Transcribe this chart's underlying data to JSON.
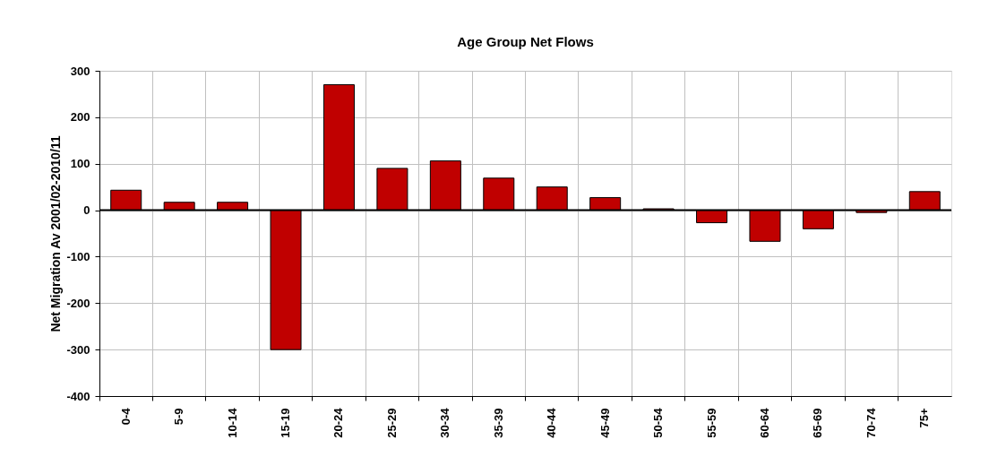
{
  "chart_data": {
    "type": "bar",
    "title": "Age Group Net Flows",
    "ylabel": "Net Migration Av 2001/02-2010/11",
    "categories": [
      "0-4",
      "5-9",
      "10-14",
      "15-19",
      "20-24",
      "25-29",
      "30-34",
      "35-39",
      "40-44",
      "45-49",
      "50-54",
      "55-59",
      "60-64",
      "65-69",
      "70-74",
      "75+"
    ],
    "values": [
      43,
      17,
      17,
      -300,
      270,
      90,
      106,
      69,
      50,
      27,
      3,
      -27,
      -67,
      -40,
      -5,
      40
    ],
    "color": "#c00000",
    "ylim": [
      -400,
      300
    ],
    "yticks": [
      -400,
      -300,
      -200,
      -100,
      0,
      100,
      200,
      300
    ],
    "grid": true
  }
}
